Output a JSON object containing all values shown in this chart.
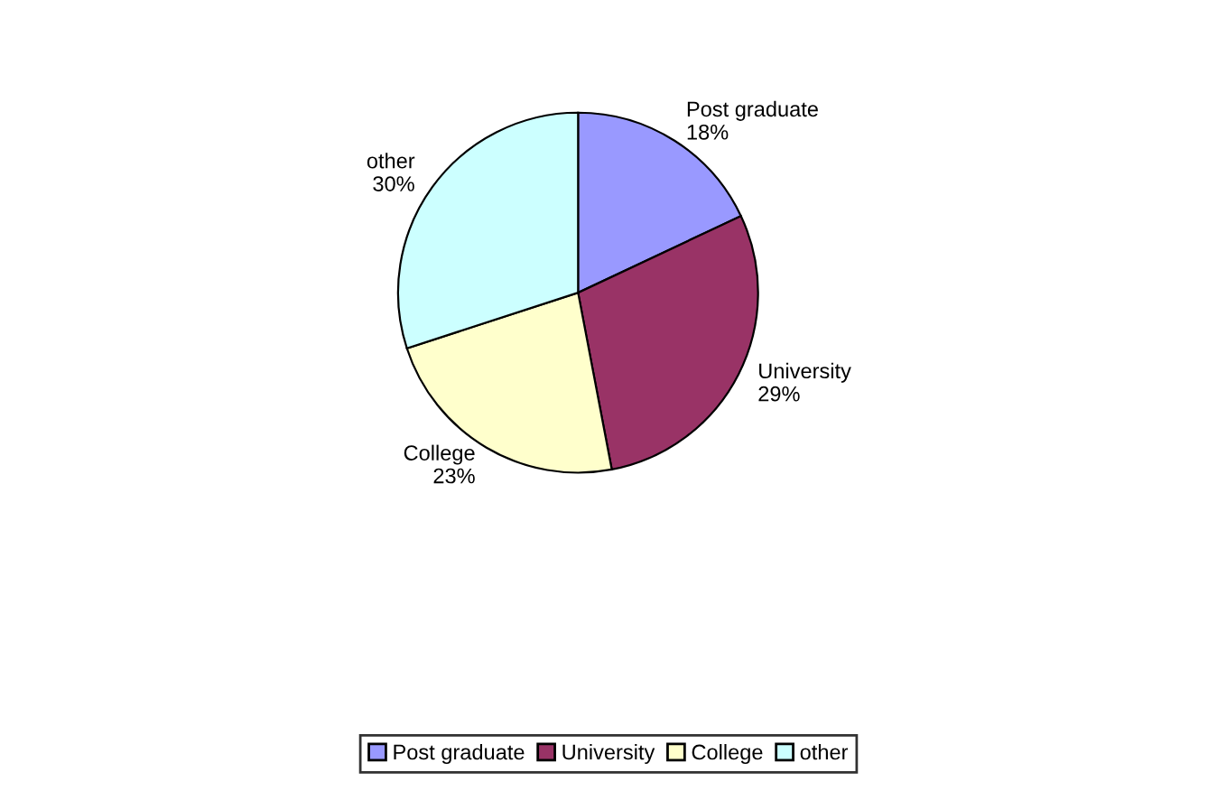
{
  "chart_data": {
    "type": "pie",
    "categories": [
      "Post graduate",
      "University",
      "College",
      "other"
    ],
    "values": [
      18,
      29,
      23,
      30
    ],
    "value_labels": [
      "18%",
      "29%",
      "23%",
      "30%"
    ],
    "colors": [
      "#9999ff",
      "#993366",
      "#ffffcc",
      "#ccffff"
    ],
    "legend": "bottom"
  }
}
